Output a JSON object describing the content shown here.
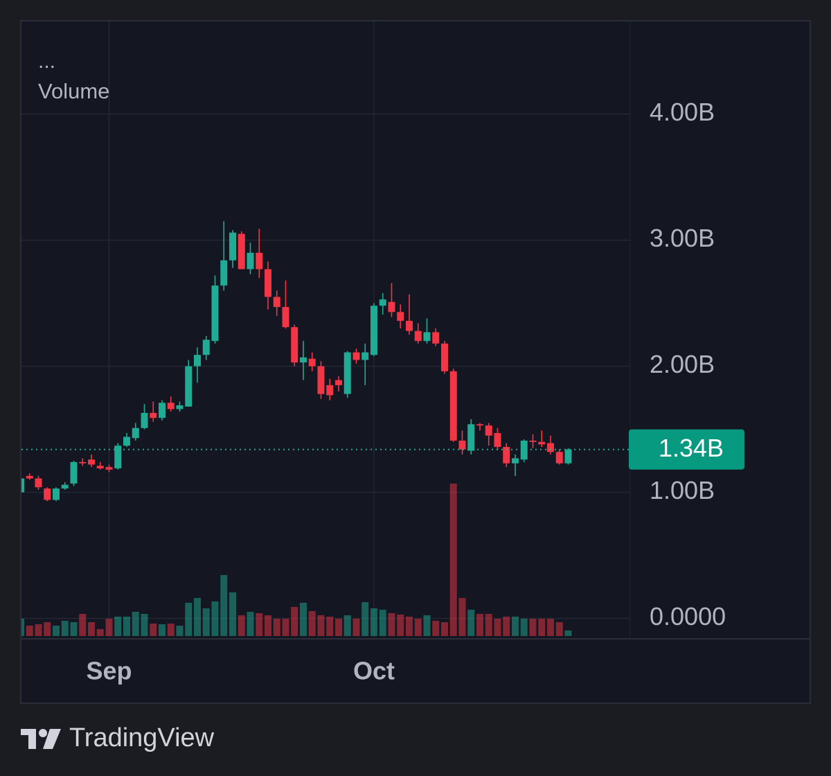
{
  "chart_data": {
    "type": "candlestick",
    "menu": "...",
    "categories": [
      null,
      null,
      null,
      null,
      null,
      null,
      null,
      null,
      null,
      null,
      "Sep",
      null,
      null,
      null,
      null,
      null,
      null,
      null,
      null,
      null,
      null,
      null,
      null,
      null,
      null,
      null,
      null,
      null,
      null,
      null,
      null,
      null,
      null,
      null,
      null,
      null,
      null,
      null,
      null,
      null,
      "Oct",
      null,
      null,
      null,
      null,
      null,
      null,
      null,
      null,
      null,
      null,
      null,
      null,
      null,
      null,
      null,
      null,
      null,
      null,
      null,
      null,
      null,
      null
    ],
    "open": [
      1.0,
      1.13,
      1.11,
      1.03,
      0.94,
      1.03,
      1.07,
      1.24,
      1.26,
      1.21,
      1.2,
      1.19,
      1.37,
      1.43,
      1.51,
      1.63,
      1.59,
      1.71,
      1.66,
      1.68,
      2.0,
      2.09,
      2.2,
      2.64,
      2.84,
      3.05,
      2.77,
      2.9,
      2.77,
      2.55,
      2.47,
      2.31,
      2.03,
      2.06,
      2.0,
      1.85,
      1.89,
      1.78,
      2.11,
      2.05,
      2.09,
      2.48,
      2.51,
      2.43,
      2.36,
      2.28,
      2.2,
      2.27,
      2.18,
      1.96,
      1.41,
      1.33,
      1.54,
      1.53,
      1.47,
      1.36,
      1.23,
      1.26,
      1.41,
      1.4,
      1.39,
      1.32,
      1.23
    ],
    "high": [
      1.12,
      1.15,
      1.13,
      1.04,
      1.04,
      1.08,
      1.25,
      1.27,
      1.3,
      1.24,
      1.22,
      1.39,
      1.47,
      1.55,
      1.7,
      1.72,
      1.73,
      1.76,
      1.72,
      2.05,
      2.15,
      2.24,
      2.72,
      3.15,
      3.08,
      3.07,
      2.98,
      3.09,
      2.83,
      2.6,
      2.68,
      2.33,
      2.2,
      2.11,
      2.04,
      1.9,
      1.92,
      2.12,
      2.14,
      2.18,
      2.5,
      2.58,
      2.66,
      2.49,
      2.57,
      2.34,
      2.38,
      2.3,
      2.2,
      1.98,
      1.49,
      1.58,
      1.55,
      1.55,
      1.51,
      1.39,
      1.3,
      1.42,
      1.46,
      1.49,
      1.45,
      1.34,
      1.35
    ],
    "low": [
      0.99,
      1.1,
      1.02,
      0.93,
      0.93,
      1.02,
      1.05,
      1.21,
      1.2,
      1.18,
      1.16,
      1.18,
      1.36,
      1.41,
      1.5,
      1.56,
      1.57,
      1.64,
      1.64,
      1.68,
      1.87,
      2.05,
      2.18,
      2.6,
      2.78,
      2.77,
      2.73,
      2.7,
      2.45,
      2.4,
      2.3,
      2.0,
      1.89,
      1.96,
      1.74,
      1.73,
      1.8,
      1.75,
      2.02,
      1.85,
      2.08,
      2.41,
      2.39,
      2.3,
      2.25,
      2.18,
      2.18,
      2.16,
      1.94,
      1.4,
      1.3,
      1.3,
      1.49,
      1.37,
      1.34,
      1.2,
      1.13,
      1.24,
      1.35,
      1.36,
      1.3,
      1.22,
      1.22
    ],
    "close": [
      1.11,
      1.11,
      1.04,
      0.94,
      1.03,
      1.06,
      1.24,
      1.23,
      1.22,
      1.19,
      1.18,
      1.37,
      1.44,
      1.51,
      1.63,
      1.59,
      1.71,
      1.66,
      1.69,
      2.0,
      2.09,
      2.21,
      2.64,
      2.84,
      3.06,
      2.77,
      2.9,
      2.77,
      2.55,
      2.47,
      2.31,
      2.03,
      2.07,
      2.0,
      1.78,
      1.77,
      1.85,
      2.11,
      2.05,
      2.11,
      2.48,
      2.53,
      2.43,
      2.36,
      2.28,
      2.2,
      2.27,
      2.18,
      1.96,
      1.41,
      1.34,
      1.54,
      1.53,
      1.45,
      1.36,
      1.23,
      1.27,
      1.41,
      1.4,
      1.38,
      1.32,
      1.23,
      1.34
    ],
    "volume": {
      "name": "Volume",
      "values": [
        25,
        15,
        17,
        20,
        15,
        22,
        20,
        32,
        20,
        10,
        25,
        28,
        28,
        35,
        32,
        18,
        17,
        18,
        15,
        48,
        55,
        40,
        50,
        88,
        63,
        30,
        35,
        33,
        30,
        25,
        25,
        42,
        48,
        36,
        30,
        28,
        25,
        30,
        25,
        49,
        40,
        38,
        33,
        31,
        28,
        25,
        30,
        22,
        20,
        220,
        55,
        38,
        32,
        32,
        25,
        28,
        28,
        25,
        25,
        25,
        25,
        20,
        8
      ]
    },
    "up_color": "#22ab94",
    "down_color": "#f23645",
    "ylim": [
      -0.14,
      4.74
    ],
    "yticks": [
      {
        "value": 0,
        "label": "0.0000"
      },
      {
        "value": 1,
        "label": "1.00B"
      },
      {
        "value": 2,
        "label": "2.00B"
      },
      {
        "value": 3,
        "label": "3.00B"
      },
      {
        "value": 4,
        "label": "4.00B"
      }
    ],
    "last_price": {
      "value": 1.34,
      "label": "1.34B"
    },
    "grid": true
  },
  "footer": {
    "brand": "TradingView"
  }
}
